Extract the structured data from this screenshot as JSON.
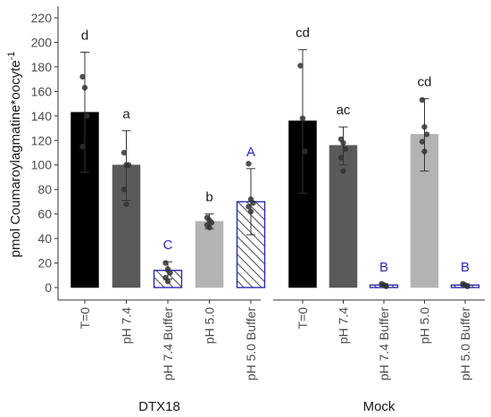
{
  "chart_data": {
    "type": "bar",
    "ylabel": "pmol Coumaroylagmatine*oocyte",
    "ylabel_superscript": "-1",
    "ylim": [
      0,
      225
    ],
    "yticks": [
      0,
      20,
      40,
      60,
      80,
      100,
      120,
      140,
      160,
      180,
      200,
      220
    ],
    "grid": false,
    "groups": [
      {
        "name": "DTX18",
        "bars": [
          {
            "category": "T=0",
            "value": 143,
            "err_low": 94,
            "err_high": 192,
            "letter": "d",
            "letter_color": "#1a1a1a",
            "fill": "#000000",
            "outline": "#000000",
            "hatched": false,
            "points": [
              172,
              163,
              140,
              115
            ]
          },
          {
            "category": "pH 7.4",
            "value": 100,
            "err_low": 71,
            "err_high": 128,
            "letter": "a",
            "letter_color": "#1a1a1a",
            "fill": "#5a5a5a",
            "outline": "#5a5a5a",
            "hatched": false,
            "points": [
              110,
              100,
              100,
              80,
              68
            ]
          },
          {
            "category": "pH 7.4 Buffer",
            "value": 14,
            "err_low": 7,
            "err_high": 21,
            "letter": "C",
            "letter_color": "#2a2ab0",
            "fill": "#ffffff",
            "outline": "#2a2ab0",
            "hatched": true,
            "points": [
              20,
              15,
              12,
              8,
              5
            ]
          },
          {
            "category": "pH 5.0",
            "value": 54,
            "err_low": 48,
            "err_high": 60,
            "letter": "b",
            "letter_color": "#1a1a1a",
            "fill": "#b3b3b3",
            "outline": "#b3b3b3",
            "hatched": false,
            "points": [
              57,
              55,
              53,
              51,
              49
            ]
          },
          {
            "category": "pH 5.0 Buffer",
            "value": 70,
            "err_low": 43,
            "err_high": 97,
            "letter": "A",
            "letter_color": "#2a2ab0",
            "fill": "#ffffff",
            "outline": "#2a2ab0",
            "hatched": true,
            "points": [
              101,
              72,
              69,
              66,
              62
            ]
          }
        ]
      },
      {
        "name": "Mock",
        "bars": [
          {
            "category": "T=0",
            "value": 136,
            "err_low": 77,
            "err_high": 194,
            "letter": "cd",
            "letter_color": "#1a1a1a",
            "fill": "#000000",
            "outline": "#000000",
            "hatched": false,
            "points": [
              181,
              138,
              111
            ]
          },
          {
            "category": "pH 7.4",
            "value": 116,
            "err_low": 100,
            "err_high": 131,
            "letter": "ac",
            "letter_color": "#1a1a1a",
            "fill": "#5a5a5a",
            "outline": "#5a5a5a",
            "hatched": false,
            "points": [
              121,
              118,
              113,
              106,
              95
            ]
          },
          {
            "category": "pH 7.4 Buffer",
            "value": 2,
            "err_low": 1,
            "err_high": 3,
            "letter": "B",
            "letter_color": "#2a2ab0",
            "fill": "#ffffff",
            "outline": "#2a2ab0",
            "hatched": true,
            "points": [
              3,
              2,
              1
            ]
          },
          {
            "category": "pH 5.0",
            "value": 125,
            "err_low": 95,
            "err_high": 154,
            "letter": "cd",
            "letter_color": "#1a1a1a",
            "fill": "#b3b3b3",
            "outline": "#b3b3b3",
            "hatched": false,
            "points": [
              153,
              131,
              125,
              119,
              111
            ]
          },
          {
            "category": "pH 5.0 Buffer",
            "value": 2,
            "err_low": 1,
            "err_high": 3,
            "letter": "B",
            "letter_color": "#2a2ab0",
            "fill": "#ffffff",
            "outline": "#2a2ab0",
            "hatched": true,
            "points": [
              3,
              2,
              1
            ]
          }
        ]
      }
    ]
  }
}
